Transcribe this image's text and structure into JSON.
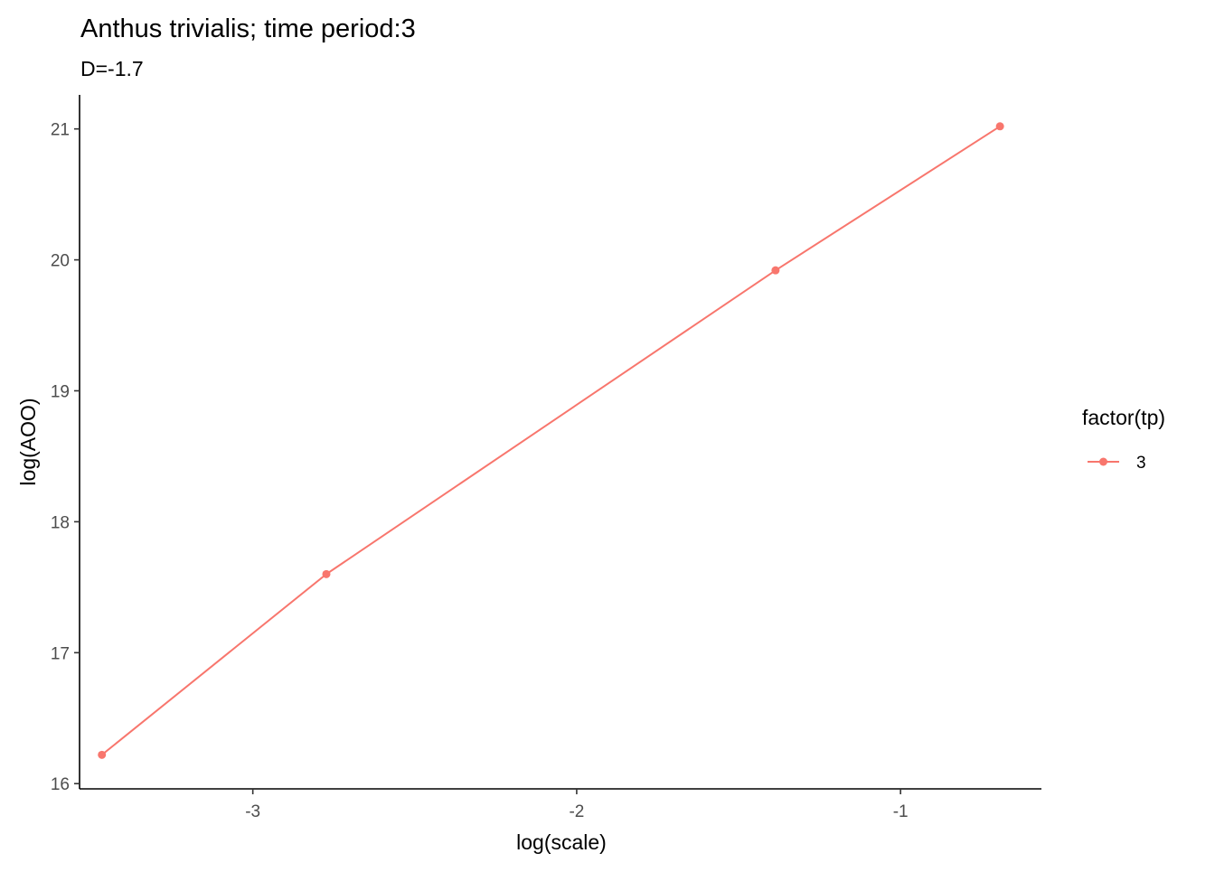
{
  "chart_data": {
    "type": "line",
    "title": "Anthus trivialis; time period:3",
    "subtitle": "D=-1.7",
    "xlabel": "log(scale)",
    "ylabel": "log(AOO)",
    "xlim": [
      -3.535,
      -0.565
    ],
    "ylim": [
      15.96,
      21.26
    ],
    "x_ticks": [
      -3,
      -2,
      -1
    ],
    "x_tick_labels": [
      "-3",
      "-2",
      "-1"
    ],
    "y_ticks": [
      16,
      17,
      18,
      19,
      20,
      21
    ],
    "y_tick_labels": [
      "16",
      "17",
      "18",
      "19",
      "20",
      "21"
    ],
    "grid": false,
    "legend": {
      "title": "factor(tp)",
      "position": "right",
      "entries": [
        "3"
      ]
    },
    "series": [
      {
        "name": "3",
        "color": "#F8766D",
        "x": [
          -3.466,
          -2.773,
          -1.386,
          -0.693
        ],
        "y": [
          16.22,
          17.6,
          19.92,
          21.02
        ]
      }
    ]
  }
}
